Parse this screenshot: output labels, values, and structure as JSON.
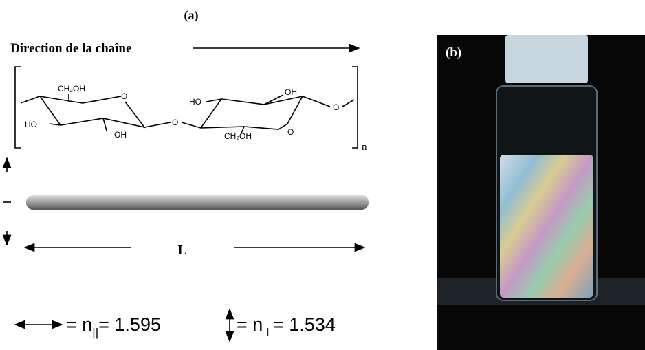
{
  "panel_a": {
    "label": "(a)",
    "chain_direction": "Direction de la chaîne",
    "molecule": {
      "atoms": [
        "CH₂OH",
        "O",
        "HO",
        "OH",
        "O",
        "HO",
        "OH",
        "CH₂OH",
        "O",
        "O"
      ],
      "repeat": "n"
    },
    "length_label": "L",
    "parallel": {
      "lhs": "= n",
      "sub": "||",
      "rhs": "= 1.595"
    },
    "perpendicular": {
      "lhs": "= n",
      "sub": "⊥",
      "rhs": "= 1.534"
    }
  },
  "panel_b": {
    "label": "(b)"
  }
}
